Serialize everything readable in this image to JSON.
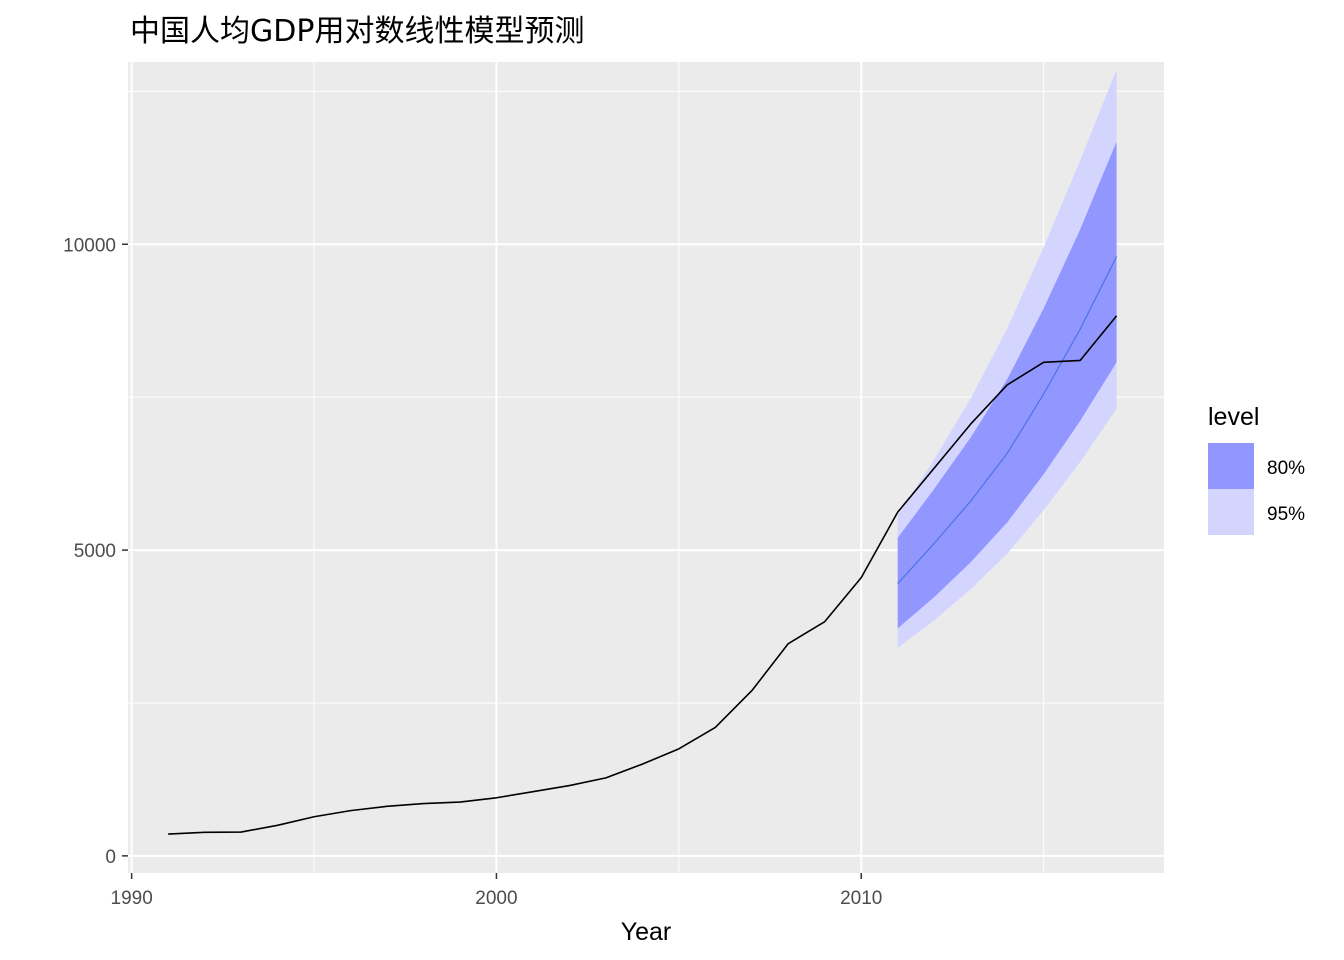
{
  "chart_data": {
    "type": "line",
    "title": "中国人均GDP用对数线性模型预测",
    "xlabel": "Year",
    "ylabel": "",
    "xlim": [
      1989.9,
      2018.3
    ],
    "ylim": [
      -280,
      12980
    ],
    "x_ticks": [
      1990,
      2000,
      2010
    ],
    "y_ticks": [
      0,
      5000,
      10000
    ],
    "grid": true,
    "panel_background": "#EBEBEB",
    "series": [
      {
        "x": [
          1991,
          1992,
          1993,
          1994,
          1995,
          1996,
          1997,
          1998,
          1999,
          2000,
          2001,
          2002,
          2003,
          2004,
          2005,
          2006,
          2007,
          2008,
          2009,
          2010,
          2011,
          2012,
          2013,
          2014,
          2015,
          2016,
          2017
        ],
        "values": [
          356,
          385,
          389,
          500,
          640,
          740,
          810,
          855,
          880,
          950,
          1050,
          1150,
          1275,
          1500,
          1750,
          2100,
          2700,
          3470,
          3830,
          4550,
          5620,
          6340,
          7060,
          7700,
          8070,
          8100,
          8830
        ],
        "color": "#000000"
      }
    ],
    "forecast": {
      "x": [
        2011,
        2012,
        2013,
        2014,
        2015,
        2016,
        2017
      ],
      "mean": [
        4450,
        5110,
        5800,
        6580,
        7550,
        8610,
        9800
      ],
      "color": "#4C72E8"
    },
    "intervals": [
      {
        "level": "80%",
        "color": "#9197FF",
        "lower": [
          3720,
          4230,
          4800,
          5450,
          6240,
          7110,
          8070
        ],
        "upper": [
          5200,
          6000,
          6840,
          7790,
          8950,
          10240,
          11680
        ]
      },
      {
        "level": "95%",
        "color": "#D4D5FF",
        "lower": [
          3400,
          3850,
          4360,
          4940,
          5650,
          6440,
          7310
        ],
        "upper": [
          5570,
          6480,
          7480,
          8620,
          9950,
          11370,
          12860
        ]
      }
    ],
    "legend": {
      "title": "level",
      "position": "right",
      "items": [
        {
          "label": "80%",
          "color": "#9197FF"
        },
        {
          "label": "95%",
          "color": "#D4D5FF"
        }
      ]
    }
  }
}
